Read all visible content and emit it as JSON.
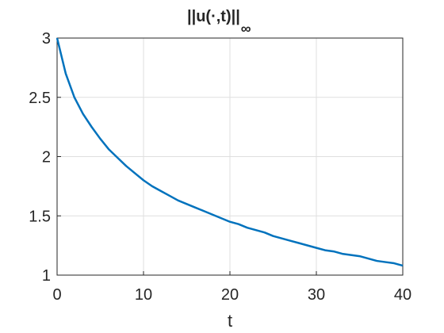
{
  "chart_data": {
    "type": "line",
    "title": "||u(·,t)||",
    "title_subscript": "∞",
    "xlabel": "t",
    "x": [
      0,
      1,
      2,
      3,
      4,
      5,
      6,
      7,
      8,
      9,
      10,
      11,
      12,
      13,
      14,
      15,
      16,
      17,
      18,
      19,
      20,
      21,
      22,
      23,
      24,
      25,
      26,
      27,
      28,
      29,
      30,
      31,
      32,
      33,
      34,
      35,
      36,
      37,
      38,
      39,
      40
    ],
    "series": [
      {
        "color": "#0072bd",
        "values": [
          3,
          2.7,
          2.5,
          2.36,
          2.25,
          2.15,
          2.06,
          1.99,
          1.92,
          1.86,
          1.8,
          1.75,
          1.71,
          1.67,
          1.63,
          1.6,
          1.57,
          1.54,
          1.51,
          1.48,
          1.45,
          1.43,
          1.4,
          1.38,
          1.36,
          1.33,
          1.31,
          1.29,
          1.27,
          1.25,
          1.23,
          1.21,
          1.2,
          1.18,
          1.17,
          1.16,
          1.14,
          1.12,
          1.11,
          1.1,
          1.08
        ]
      }
    ],
    "xlim": [
      0,
      40
    ],
    "ylim": [
      1,
      3
    ],
    "xticks": [
      0,
      10,
      20,
      30,
      40
    ],
    "yticks": [
      1,
      1.5,
      2,
      2.5,
      3
    ],
    "grid": true
  }
}
